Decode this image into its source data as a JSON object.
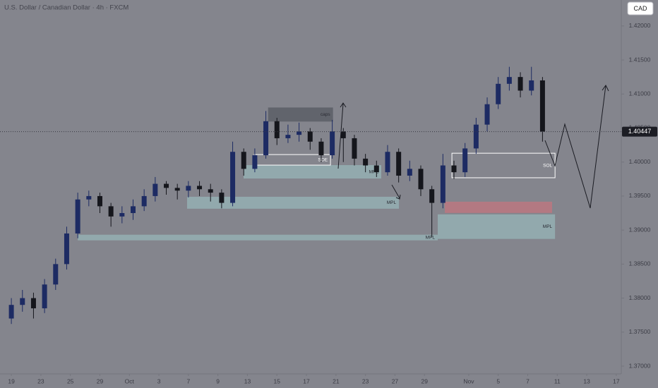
{
  "chart_data": {
    "type": "candlestick",
    "title": "U.S. Dollar / Canadian Dollar · 4h · FXCM",
    "currency": "CAD",
    "up_color": "#1d2b63",
    "down_color": "#15161c",
    "grid": false,
    "xlim": [
      -0.77,
      41.34
    ],
    "ylim": [
      1.36886,
      1.42382
    ],
    "xticks": [
      {
        "value": 0,
        "label": "19"
      },
      {
        "value": 2,
        "label": "23"
      },
      {
        "value": 4,
        "label": "25"
      },
      {
        "value": 6,
        "label": "29"
      },
      {
        "value": 8,
        "label": "Oct"
      },
      {
        "value": 10,
        "label": "3"
      },
      {
        "value": 12,
        "label": "7"
      },
      {
        "value": 14,
        "label": "9"
      },
      {
        "value": 16,
        "label": "13"
      },
      {
        "value": 18,
        "label": "15"
      },
      {
        "value": 20,
        "label": "17"
      },
      {
        "value": 22,
        "label": "21"
      },
      {
        "value": 24,
        "label": "23"
      },
      {
        "value": 26,
        "label": "27"
      },
      {
        "value": 28,
        "label": "29"
      },
      {
        "value": 31,
        "label": "Nov"
      },
      {
        "value": 33,
        "label": "5"
      },
      {
        "value": 35,
        "label": "7"
      },
      {
        "value": 37,
        "label": "11"
      },
      {
        "value": 39,
        "label": "13"
      },
      {
        "value": 41,
        "label": "17"
      }
    ],
    "yticks": [
      {
        "value": 1.37,
        "label": "1.37000"
      },
      {
        "value": 1.375,
        "label": "1.37500"
      },
      {
        "value": 1.38,
        "label": "1.38000"
      },
      {
        "value": 1.385,
        "label": "1.38500"
      },
      {
        "value": 1.39,
        "label": "1.39000"
      },
      {
        "value": 1.395,
        "label": "1.39500"
      },
      {
        "value": 1.4,
        "label": "1.40000"
      },
      {
        "value": 1.405,
        "label": "1.40500"
      },
      {
        "value": 1.41,
        "label": "1.41000"
      },
      {
        "value": 1.415,
        "label": "1.41500"
      },
      {
        "value": 1.42,
        "label": "1.42000"
      }
    ],
    "last_price": 1.40447,
    "candles": {
      "x": [
        0,
        0.75,
        1.5,
        2.25,
        3,
        3.75,
        4.5,
        5.25,
        6,
        6.75,
        7.5,
        8.25,
        9,
        9.75,
        10.5,
        11.25,
        12,
        12.75,
        13.5,
        14.25,
        15,
        15.75,
        16.5,
        17.25,
        18,
        18.75,
        19.5,
        20.25,
        21,
        21.75,
        22.5,
        23.25,
        24,
        24.75,
        25.5,
        26.25,
        27,
        27.75,
        28.5,
        29.25,
        30,
        30.75,
        31.5,
        32.25,
        33,
        33.75,
        34.5,
        35.25,
        36
      ],
      "open": [
        1.377,
        1.379,
        1.38,
        1.3785,
        1.382,
        1.385,
        1.3895,
        1.3945,
        1.395,
        1.3935,
        1.392,
        1.3925,
        1.3935,
        1.395,
        1.3968,
        1.3962,
        1.3958,
        1.3965,
        1.396,
        1.3955,
        1.394,
        1.4015,
        1.399,
        1.401,
        1.406,
        1.4035,
        1.404,
        1.4045,
        1.403,
        1.401,
        1.4045,
        1.4035,
        1.4005,
        1.3995,
        1.3985,
        1.4015,
        1.398,
        1.399,
        1.396,
        1.394,
        1.3995,
        1.3985,
        1.402,
        1.4055,
        1.4085,
        1.4115,
        1.4125,
        1.4105,
        1.412
      ],
      "high": [
        1.38,
        1.3812,
        1.3808,
        1.3828,
        1.3858,
        1.3905,
        1.3955,
        1.3958,
        1.3955,
        1.394,
        1.3935,
        1.3945,
        1.396,
        1.3978,
        1.3972,
        1.3968,
        1.3972,
        1.3972,
        1.3968,
        1.396,
        1.403,
        1.402,
        1.402,
        1.4075,
        1.4065,
        1.4055,
        1.4058,
        1.405,
        1.4035,
        1.4062,
        1.405,
        1.404,
        1.4012,
        1.4002,
        1.4025,
        1.402,
        1.4002,
        1.3995,
        1.3965,
        1.4012,
        1.4002,
        1.4028,
        1.4065,
        1.4095,
        1.4125,
        1.414,
        1.4132,
        1.414,
        1.4125
      ],
      "low": [
        1.3762,
        1.378,
        1.377,
        1.3778,
        1.3812,
        1.3842,
        1.3888,
        1.3935,
        1.3925,
        1.3905,
        1.391,
        1.3915,
        1.3928,
        1.3942,
        1.3952,
        1.3945,
        1.3948,
        1.395,
        1.3942,
        1.3932,
        1.3935,
        1.398,
        1.3985,
        1.4005,
        1.4025,
        1.4028,
        1.403,
        1.4018,
        1.4,
        1.4005,
        1.4,
        1.3995,
        1.3985,
        1.3978,
        1.398,
        1.397,
        1.3972,
        1.395,
        1.389,
        1.3932,
        1.3975,
        1.3978,
        1.4012,
        1.4045,
        1.4078,
        1.4105,
        1.4095,
        1.4098,
        1.403
      ],
      "close": [
        1.379,
        1.38,
        1.3785,
        1.382,
        1.385,
        1.3895,
        1.3945,
        1.395,
        1.3935,
        1.392,
        1.3925,
        1.3935,
        1.395,
        1.3968,
        1.3962,
        1.3958,
        1.3965,
        1.396,
        1.3955,
        1.394,
        1.4015,
        1.399,
        1.401,
        1.406,
        1.4035,
        1.404,
        1.4045,
        1.403,
        1.401,
        1.4045,
        1.4035,
        1.4005,
        1.3995,
        1.3985,
        1.4015,
        1.398,
        1.399,
        1.396,
        1.394,
        1.3995,
        1.3985,
        1.402,
        1.4055,
        1.4085,
        1.4115,
        1.4125,
        1.4105,
        1.412,
        1.40447
      ]
    },
    "zones": [
      {
        "x": [
          17.4,
          21.8
        ],
        "y": [
          1.40595,
          1.40802
        ],
        "color": "rgba(70,72,82,0.55)",
        "style": "fill",
        "label": "caps"
      },
      {
        "x": [
          15.74,
          25.07
        ],
        "y": [
          1.39758,
          1.39955
        ],
        "color": "rgba(160,205,205,0.5)",
        "style": "fill",
        "label": "MPL"
      },
      {
        "x": [
          16.46,
          21.63
        ],
        "y": [
          1.39955,
          1.4011
        ],
        "color": "#ffffff",
        "style": "outline",
        "label": "SOE"
      },
      {
        "x": [
          11.91,
          26.27
        ],
        "y": [
          1.39314,
          1.3949
        ],
        "color": "rgba(160,205,205,0.5)",
        "style": "fill",
        "label": "MPL"
      },
      {
        "x": [
          4.5,
          28.9
        ],
        "y": [
          1.38849,
          1.38932
        ],
        "color": "rgba(160,205,205,0.5)",
        "style": "fill",
        "label": "MPL"
      },
      {
        "x": [
          29.86,
          36.85
        ],
        "y": [
          1.39769,
          1.4013
        ],
        "color": "#ffffff",
        "style": "outline",
        "label": "SOL"
      },
      {
        "x": [
          29.38,
          36.65
        ],
        "y": [
          1.39252,
          1.39417
        ],
        "color": "rgba(225,110,120,0.5)",
        "style": "fill"
      },
      {
        "x": [
          28.9,
          36.85
        ],
        "y": [
          1.3887,
          1.39231
        ],
        "color": "rgba(160,205,205,0.5)",
        "style": "fill",
        "label": "MPL"
      }
    ]
  }
}
